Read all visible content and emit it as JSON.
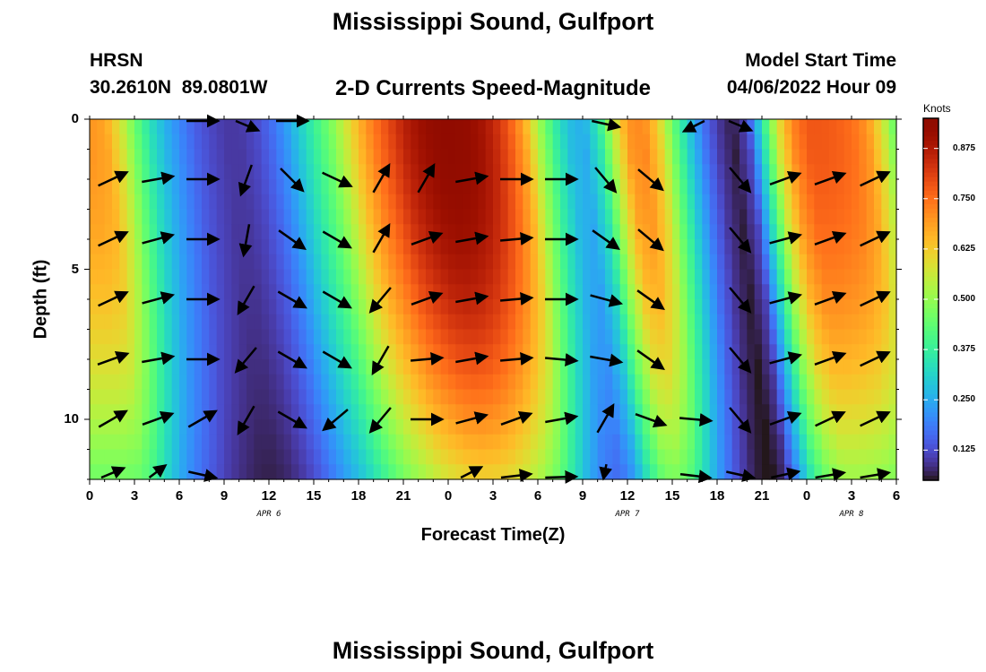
{
  "page": {
    "title": "Mississippi Sound, Gulfport",
    "footer_title": "Mississippi Sound, Gulfport",
    "station_code": "HRSN",
    "station_coords": "30.2610N  89.0801W",
    "subtitle": "2-D Currents Speed-Magnitude",
    "model_start_label": "Model Start Time",
    "model_start_value": "04/06/2022 Hour 09"
  },
  "chart_data": {
    "type": "heatmap",
    "title": "2-D Currents Speed-Magnitude",
    "xlabel": "Forecast Time(Z)",
    "ylabel": "Depth (ft)",
    "x_tick_labels": [
      "0",
      "3",
      "6",
      "9",
      "12",
      "15",
      "18",
      "21",
      "0",
      "3",
      "6",
      "9",
      "12",
      "15",
      "18",
      "21",
      "0",
      "3",
      "6"
    ],
    "date_labels": [
      {
        "label": "APR 6",
        "hour": 12
      },
      {
        "label": "APR 7",
        "hour": 36
      },
      {
        "label": "APR 8",
        "hour": 51
      }
    ],
    "xlim": [
      0,
      54
    ],
    "y_ticks": [
      0,
      5,
      10
    ],
    "ylim": [
      0,
      12
    ],
    "y_inverted": true,
    "colorbar": {
      "label": "Knots",
      "ticks": [
        "0.125",
        "0.250",
        "0.375",
        "0.500",
        "0.625",
        "0.750",
        "0.875"
      ],
      "range": [
        0.05,
        0.95
      ],
      "colormap": "turbo"
    },
    "hours": [
      0,
      1,
      2,
      3,
      4,
      5,
      6,
      7,
      8,
      9,
      10,
      11,
      12,
      13,
      14,
      15,
      16,
      17,
      18,
      19,
      20,
      21,
      22,
      23,
      24,
      25,
      26,
      27,
      28,
      29,
      30,
      31,
      32,
      33,
      34,
      35,
      36,
      37,
      38,
      39,
      40,
      41,
      42,
      43,
      44,
      45,
      46,
      47,
      48,
      49,
      50,
      51,
      52,
      53,
      54
    ],
    "speed_profile_knots": [
      0.7,
      0.68,
      0.58,
      0.45,
      0.34,
      0.26,
      0.2,
      0.15,
      0.12,
      0.1,
      0.1,
      0.12,
      0.16,
      0.22,
      0.3,
      0.38,
      0.46,
      0.56,
      0.66,
      0.74,
      0.8,
      0.86,
      0.9,
      0.93,
      0.94,
      0.93,
      0.9,
      0.85,
      0.78,
      0.68,
      0.52,
      0.38,
      0.28,
      0.25,
      0.35,
      0.55,
      0.7,
      0.72,
      0.62,
      0.45,
      0.3,
      0.18,
      0.1,
      0.06,
      0.12,
      0.35,
      0.58,
      0.72,
      0.78,
      0.78,
      0.77,
      0.75,
      0.7,
      0.58,
      0.42
    ],
    "bottom_shift_hours": 2.5,
    "bottom_attenuation": 0.35,
    "vectors": {
      "depths_ft": [
        0,
        2,
        4,
        6,
        8,
        10,
        12
      ],
      "hours": [
        1.5,
        4.5,
        7.5,
        10.5,
        13.5,
        16.5,
        19.5,
        22.5,
        25.5,
        28.5,
        31.5,
        34.5,
        37.5,
        40.5,
        43.5,
        46.5,
        49.5,
        52.5
      ],
      "direction_deg": [
        [
          null,
          null,
          90,
          135,
          90,
          null,
          null,
          null,
          null,
          null,
          null,
          120,
          null,
          220,
          135,
          null,
          null,
          null
        ],
        [
          65,
          80,
          90,
          200,
          135,
          115,
          30,
          30,
          80,
          90,
          90,
          140,
          130,
          null,
          140,
          70,
          70,
          65
        ],
        [
          65,
          75,
          90,
          190,
          125,
          120,
          30,
          70,
          80,
          85,
          90,
          125,
          130,
          null,
          140,
          75,
          70,
          65
        ],
        [
          65,
          75,
          90,
          210,
          120,
          120,
          220,
          70,
          80,
          85,
          90,
          105,
          125,
          null,
          140,
          75,
          70,
          65
        ],
        [
          70,
          80,
          90,
          220,
          120,
          120,
          210,
          85,
          80,
          85,
          95,
          100,
          125,
          null,
          140,
          75,
          70,
          65
        ],
        [
          60,
          70,
          60,
          210,
          120,
          230,
          220,
          90,
          75,
          70,
          80,
          30,
          110,
          95,
          140,
          70,
          65,
          65
        ],
        [
          45,
          30,
          120,
          null,
          null,
          null,
          null,
          null,
          40,
          70,
          80,
          185,
          null,
          110,
          120,
          60,
          65,
          65
        ]
      ]
    }
  }
}
